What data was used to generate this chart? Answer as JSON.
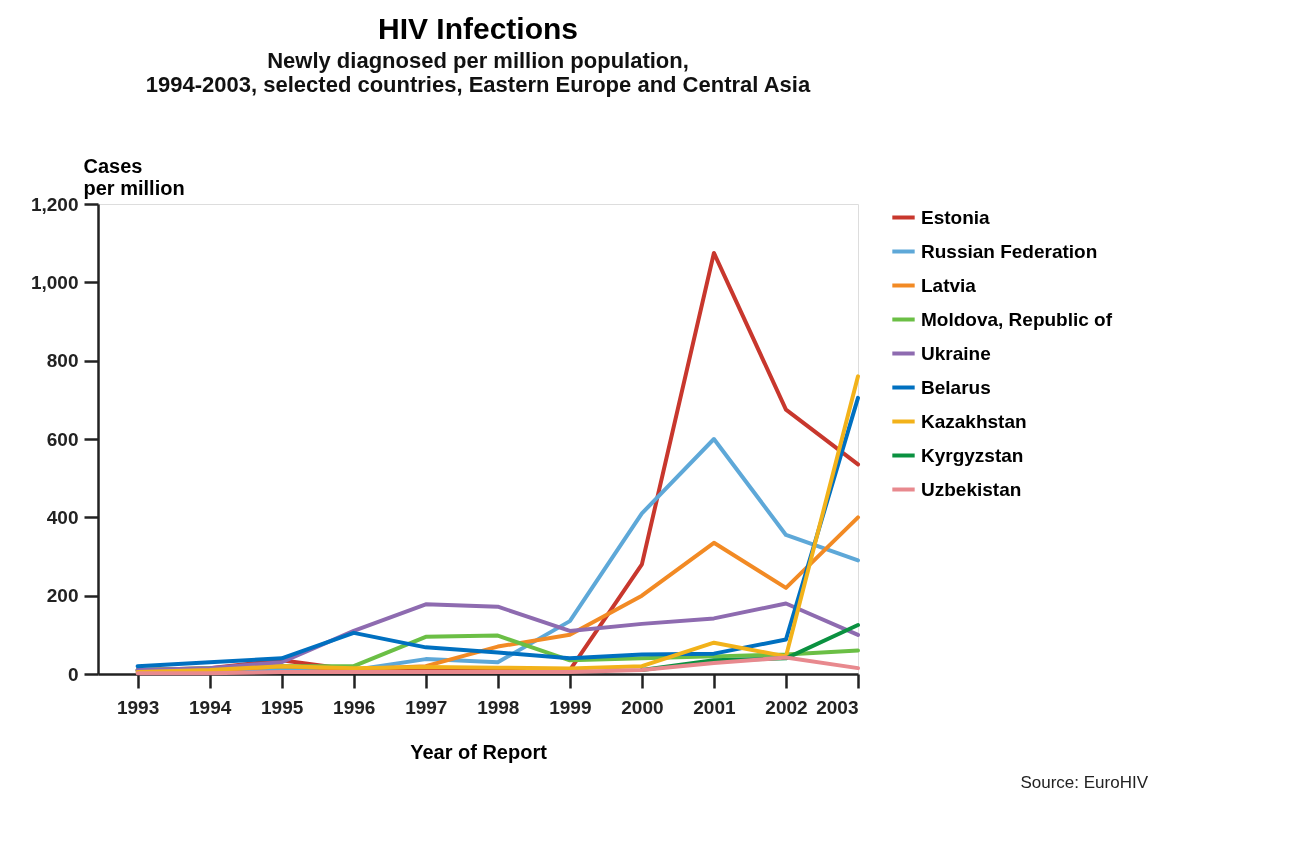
{
  "chart_data": {
    "type": "line",
    "title": "HIV Infections",
    "subtitle": "Newly diagnosed per million population,\n1994-2003, selected countries, Eastern Europe and Central Asia",
    "xlabel": "Year of Report",
    "ylabel": "Cases\nper million",
    "x": [
      1993,
      1994,
      1995,
      1996,
      1997,
      1998,
      1999,
      2000,
      2001,
      2002,
      2003
    ],
    "xlim": [
      1992.45,
      2003
    ],
    "xticks": [
      1993,
      1994,
      1995,
      1996,
      1997,
      1998,
      1999,
      2000,
      2001,
      2002,
      2003
    ],
    "ylim": [
      0,
      1200
    ],
    "yticks": [
      {
        "value": 0,
        "label": "0"
      },
      {
        "value": 200,
        "label": "200"
      },
      {
        "value": 400,
        "label": "400"
      },
      {
        "value": 600,
        "label": "600"
      },
      {
        "value": 800,
        "label": "800"
      },
      {
        "value": 1000,
        "label": "1,000"
      },
      {
        "value": 1200,
        "label": "1,200"
      }
    ],
    "grid": false,
    "legend": "right",
    "marker": "none",
    "line_style": "solid",
    "series": [
      {
        "name": "Estonia",
        "color": "#c8372d",
        "values": [
          10,
          15,
          35,
          10,
          10,
          10,
          10,
          280,
          1075,
          675,
          535
        ]
      },
      {
        "name": "Russian Federation",
        "color": "#5ea8d8",
        "values": [
          5,
          5,
          10,
          10,
          38,
          30,
          135,
          410,
          600,
          355,
          290
        ]
      },
      {
        "name": "Latvia",
        "color": "#f28a24",
        "values": [
          8,
          8,
          20,
          12,
          20,
          70,
          100,
          200,
          335,
          220,
          400
        ]
      },
      {
        "name": "Moldova, Republic of",
        "color": "#6bbf45",
        "values": [
          10,
          15,
          20,
          20,
          95,
          98,
          35,
          40,
          45,
          50,
          60
        ]
      },
      {
        "name": "Ukraine",
        "color": "#8e6bb0",
        "values": [
          10,
          15,
          30,
          110,
          178,
          172,
          110,
          128,
          142,
          180,
          100
        ]
      },
      {
        "name": "Belarus",
        "color": "#0070c0",
        "values": [
          20,
          30,
          40,
          105,
          68,
          55,
          40,
          50,
          52,
          88,
          705
        ]
      },
      {
        "name": "Kazakhstan",
        "color": "#f2b21a",
        "values": [
          5,
          10,
          20,
          15,
          18,
          16,
          14,
          20,
          80,
          45,
          760
        ]
      },
      {
        "name": "Kyrgyzstan",
        "color": "#0a9140",
        "values": [
          null,
          null,
          null,
          null,
          null,
          null,
          null,
          10,
          35,
          40,
          125
        ]
      },
      {
        "name": "Uzbekistan",
        "color": "#e8898e",
        "values": [
          2,
          2,
          5,
          5,
          5,
          5,
          5,
          10,
          28,
          42,
          15
        ]
      }
    ],
    "annotations": [
      "Source: EuroHIV"
    ]
  }
}
